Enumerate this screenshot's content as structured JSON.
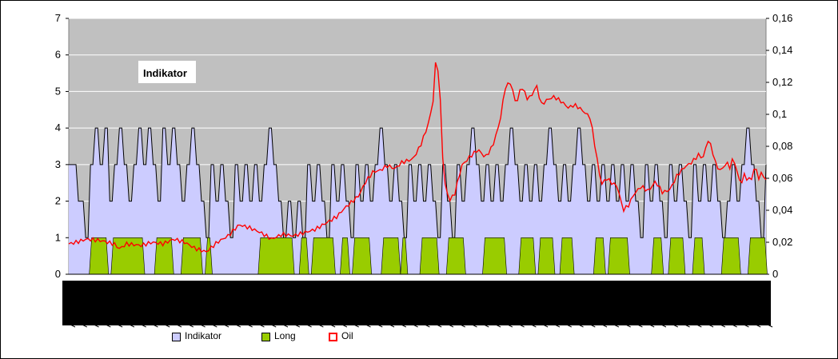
{
  "chart_data": {
    "type": "area",
    "title": "Indikator",
    "colors": {
      "plot_background": "#c0c0c0",
      "indikator_fill": "#ccccff",
      "long_fill": "#99cc00",
      "oil_line": "#ff0000",
      "indikator_line": "#000000"
    },
    "y_left": {
      "ylim": [
        0,
        7
      ],
      "ticks": [
        "0",
        "1",
        "2",
        "3",
        "4",
        "5",
        "6",
        "7"
      ]
    },
    "y_right": {
      "ylim": [
        0,
        0.16
      ],
      "ticks": [
        "0",
        "0,02",
        "0,04",
        "0,06",
        "0,08",
        "0,1",
        "0,12",
        "0,14",
        "0,16"
      ]
    },
    "grid": true,
    "legend_position": "bottom",
    "n_points": 290,
    "series": [
      {
        "name": "Indikator",
        "style": "area",
        "axis": "left",
        "segments": [
          [
            0,
            3
          ],
          [
            4,
            2
          ],
          [
            7,
            1
          ],
          [
            9,
            3
          ],
          [
            11,
            4
          ],
          [
            13,
            3
          ],
          [
            15,
            4
          ],
          [
            17,
            2
          ],
          [
            19,
            3
          ],
          [
            21,
            4
          ],
          [
            23,
            3
          ],
          [
            25,
            2
          ],
          [
            27,
            3
          ],
          [
            29,
            4
          ],
          [
            31,
            3
          ],
          [
            33,
            4
          ],
          [
            35,
            3
          ],
          [
            37,
            2
          ],
          [
            39,
            4
          ],
          [
            41,
            3
          ],
          [
            43,
            4
          ],
          [
            45,
            3
          ],
          [
            47,
            2
          ],
          [
            49,
            3
          ],
          [
            51,
            4
          ],
          [
            53,
            3
          ],
          [
            55,
            2
          ],
          [
            57,
            1
          ],
          [
            59,
            3
          ],
          [
            61,
            2
          ],
          [
            63,
            3
          ],
          [
            65,
            2
          ],
          [
            67,
            1
          ],
          [
            69,
            3
          ],
          [
            71,
            2
          ],
          [
            73,
            3
          ],
          [
            75,
            2
          ],
          [
            77,
            3
          ],
          [
            79,
            2
          ],
          [
            81,
            3
          ],
          [
            83,
            4
          ],
          [
            85,
            3
          ],
          [
            87,
            2
          ],
          [
            89,
            1
          ],
          [
            91,
            2
          ],
          [
            93,
            1
          ],
          [
            95,
            2
          ],
          [
            97,
            1
          ],
          [
            99,
            3
          ],
          [
            101,
            2
          ],
          [
            103,
            3
          ],
          [
            105,
            2
          ],
          [
            107,
            1
          ],
          [
            109,
            3
          ],
          [
            111,
            2
          ],
          [
            113,
            3
          ],
          [
            115,
            2
          ],
          [
            117,
            1
          ],
          [
            119,
            3
          ],
          [
            121,
            2
          ],
          [
            123,
            3
          ],
          [
            125,
            2
          ],
          [
            127,
            3
          ],
          [
            129,
            4
          ],
          [
            131,
            3
          ],
          [
            133,
            2
          ],
          [
            135,
            3
          ],
          [
            137,
            2
          ],
          [
            139,
            1
          ],
          [
            141,
            3
          ],
          [
            143,
            2
          ],
          [
            145,
            3
          ],
          [
            147,
            2
          ],
          [
            149,
            3
          ],
          [
            151,
            2
          ],
          [
            153,
            1
          ],
          [
            155,
            3
          ],
          [
            157,
            2
          ],
          [
            159,
            1
          ],
          [
            161,
            3
          ],
          [
            163,
            2
          ],
          [
            165,
            3
          ],
          [
            167,
            4
          ],
          [
            169,
            3
          ],
          [
            171,
            2
          ],
          [
            173,
            3
          ],
          [
            175,
            2
          ],
          [
            177,
            3
          ],
          [
            179,
            2
          ],
          [
            181,
            3
          ],
          [
            183,
            4
          ],
          [
            185,
            3
          ],
          [
            187,
            2
          ],
          [
            189,
            3
          ],
          [
            191,
            2
          ],
          [
            193,
            3
          ],
          [
            195,
            2
          ],
          [
            197,
            3
          ],
          [
            199,
            4
          ],
          [
            201,
            3
          ],
          [
            203,
            2
          ],
          [
            205,
            3
          ],
          [
            207,
            2
          ],
          [
            209,
            3
          ],
          [
            211,
            4
          ],
          [
            213,
            3
          ],
          [
            215,
            2
          ],
          [
            217,
            3
          ],
          [
            219,
            2
          ],
          [
            221,
            3
          ],
          [
            223,
            2
          ],
          [
            225,
            3
          ],
          [
            227,
            2
          ],
          [
            229,
            3
          ],
          [
            231,
            2
          ],
          [
            233,
            3
          ],
          [
            235,
            2
          ],
          [
            237,
            1
          ],
          [
            239,
            3
          ],
          [
            241,
            2
          ],
          [
            243,
            3
          ],
          [
            245,
            2
          ],
          [
            247,
            1
          ],
          [
            249,
            3
          ],
          [
            251,
            2
          ],
          [
            253,
            3
          ],
          [
            255,
            2
          ],
          [
            257,
            1
          ],
          [
            259,
            3
          ],
          [
            261,
            2
          ],
          [
            263,
            3
          ],
          [
            265,
            2
          ],
          [
            267,
            3
          ],
          [
            269,
            2
          ],
          [
            271,
            1
          ],
          [
            273,
            2
          ],
          [
            275,
            3
          ],
          [
            277,
            2
          ],
          [
            279,
            3
          ],
          [
            281,
            4
          ],
          [
            283,
            3
          ],
          [
            285,
            2
          ],
          [
            287,
            1
          ],
          [
            289,
            3
          ]
        ]
      },
      {
        "name": "Long",
        "style": "area",
        "axis": "left",
        "on_ranges": [
          [
            9,
            16
          ],
          [
            18,
            31
          ],
          [
            36,
            43
          ],
          [
            47,
            55
          ],
          [
            57,
            59
          ],
          [
            79,
            93
          ],
          [
            96,
            99
          ],
          [
            101,
            110
          ],
          [
            113,
            116
          ],
          [
            118,
            125
          ],
          [
            130,
            137
          ],
          [
            138,
            140
          ],
          [
            146,
            153
          ],
          [
            157,
            164
          ],
          [
            172,
            181
          ],
          [
            187,
            193
          ],
          [
            195,
            201
          ],
          [
            204,
            209
          ],
          [
            218,
            222
          ],
          [
            224,
            232
          ],
          [
            242,
            246
          ],
          [
            249,
            255
          ],
          [
            259,
            263
          ],
          [
            271,
            278
          ],
          [
            282,
            289
          ]
        ]
      },
      {
        "name": "Oil",
        "style": "line",
        "axis": "right",
        "anchors": [
          [
            0,
            0.019
          ],
          [
            4,
            0.02
          ],
          [
            10,
            0.022
          ],
          [
            18,
            0.021
          ],
          [
            25,
            0.019
          ],
          [
            28,
            0.016
          ],
          [
            32,
            0.019
          ],
          [
            40,
            0.018
          ],
          [
            46,
            0.02
          ],
          [
            52,
            0.019
          ],
          [
            58,
            0.022
          ],
          [
            64,
            0.02
          ],
          [
            70,
            0.016
          ],
          [
            76,
            0.014
          ],
          [
            82,
            0.02
          ],
          [
            88,
            0.024
          ],
          [
            94,
            0.031
          ],
          [
            100,
            0.029
          ],
          [
            106,
            0.026
          ],
          [
            112,
            0.022
          ],
          [
            118,
            0.025
          ],
          [
            124,
            0.024
          ],
          [
            130,
            0.026
          ],
          [
            136,
            0.028
          ],
          [
            142,
            0.032
          ],
          [
            148,
            0.036
          ],
          [
            152,
            0.041
          ],
          [
            156,
            0.045
          ],
          [
            160,
            0.049
          ],
          [
            164,
            0.058
          ],
          [
            168,
            0.064
          ],
          [
            172,
            0.065
          ],
          [
            176,
            0.068
          ],
          [
            180,
            0.066
          ],
          [
            184,
            0.07
          ],
          [
            190,
            0.072
          ],
          [
            194,
            0.08
          ],
          [
            198,
            0.092
          ],
          [
            201,
            0.106
          ],
          [
            203,
            0.14
          ],
          [
            205,
            0.112
          ],
          [
            207,
            0.06
          ],
          [
            210,
            0.046
          ],
          [
            213,
            0.05
          ],
          [
            217,
            0.068
          ],
          [
            222,
            0.074
          ],
          [
            226,
            0.078
          ],
          [
            230,
            0.073
          ],
          [
            234,
            0.08
          ],
          [
            238,
            0.095
          ],
          [
            241,
            0.117
          ],
          [
            244,
            0.12
          ],
          [
            247,
            0.106
          ],
          [
            250,
            0.118
          ],
          [
            253,
            0.11
          ],
          [
            256,
            0.112
          ],
          [
            258,
            0.119
          ],
          [
            261,
            0.106
          ],
          [
            264,
            0.109
          ],
          [
            268,
            0.111
          ],
          [
            272,
            0.108
          ],
          [
            276,
            0.104
          ],
          [
            279,
            0.106
          ],
          [
            282,
            0.104
          ],
          [
            286,
            0.1
          ],
          [
            288,
            0.098
          ],
          [
            292,
            0.07
          ],
          [
            294,
            0.056
          ],
          [
            297,
            0.06
          ],
          [
            300,
            0.057
          ],
          [
            303,
            0.055
          ],
          [
            306,
            0.04
          ],
          [
            309,
            0.043
          ],
          [
            312,
            0.05
          ],
          [
            316,
            0.055
          ],
          [
            320,
            0.052
          ],
          [
            324,
            0.058
          ],
          [
            328,
            0.051
          ],
          [
            332,
            0.053
          ],
          [
            336,
            0.062
          ],
          [
            340,
            0.067
          ],
          [
            344,
            0.07
          ],
          [
            348,
            0.075
          ],
          [
            350,
            0.072
          ],
          [
            353,
            0.084
          ],
          [
            355,
            0.079
          ],
          [
            357,
            0.07
          ],
          [
            359,
            0.065
          ],
          [
            361,
            0.066
          ],
          [
            363,
            0.07
          ],
          [
            365,
            0.067
          ],
          [
            367,
            0.073
          ],
          [
            369,
            0.064
          ],
          [
            371,
            0.056
          ],
          [
            373,
            0.062
          ],
          [
            375,
            0.059
          ],
          [
            377,
            0.06
          ],
          [
            379,
            0.068
          ],
          [
            381,
            0.06
          ],
          [
            383,
            0.064
          ],
          [
            385,
            0.058
          ]
        ]
      }
    ],
    "x_tick_labels_note": "dense overlapping date labels rendered as dark band"
  },
  "legend": {
    "items": [
      {
        "label": "Indikator"
      },
      {
        "label": "Long"
      },
      {
        "label": "Oil"
      }
    ]
  }
}
